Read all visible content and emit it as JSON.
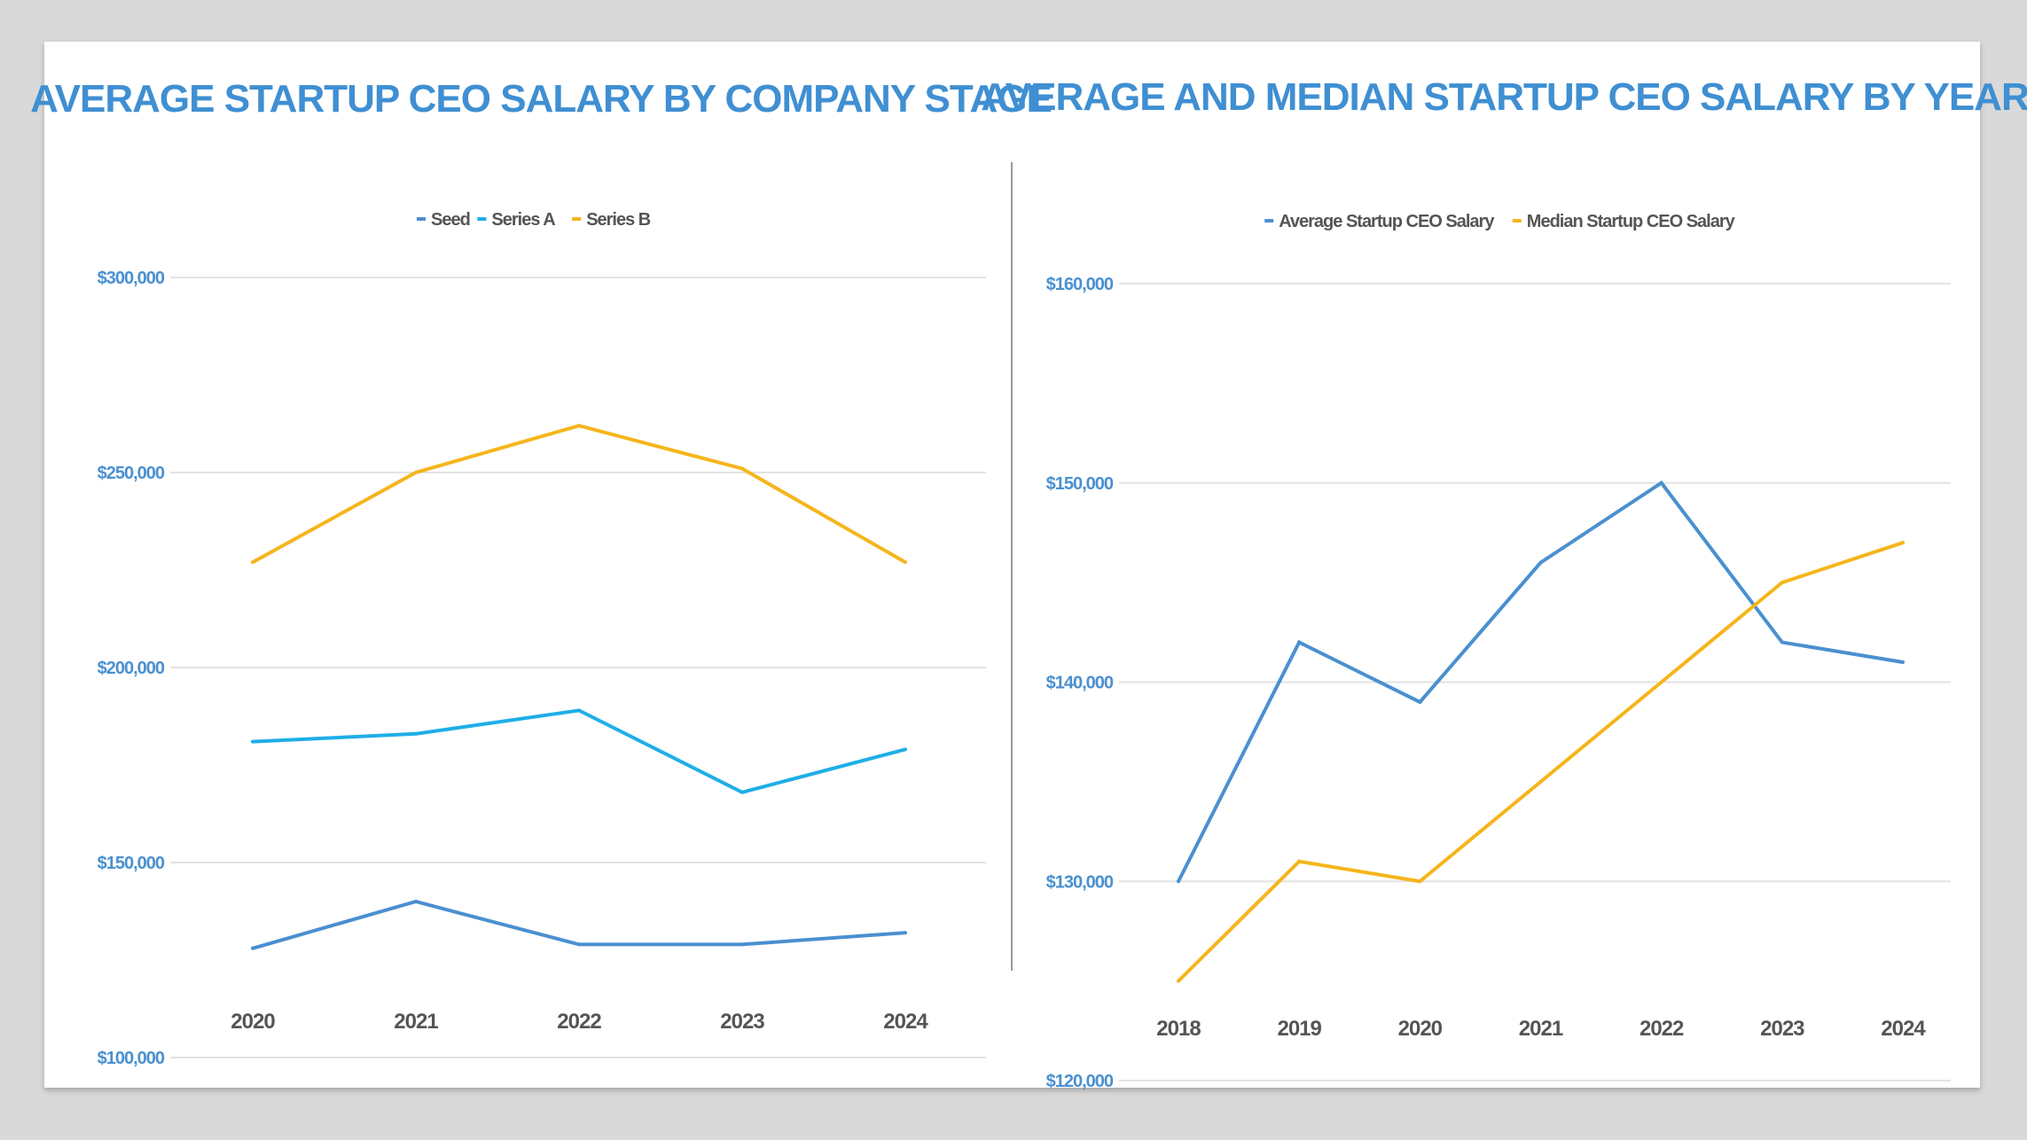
{
  "chart_data": [
    {
      "type": "line",
      "title": "AVERAGE STARTUP CEO SALARY BY COMPANY STAGE",
      "categories": [
        "2020",
        "2021",
        "2022",
        "2023",
        "2024"
      ],
      "ylim": [
        100000,
        300000
      ],
      "yticks": [
        "$100,000",
        "$150,000",
        "$200,000",
        "$250,000",
        "$300,000"
      ],
      "ytick_values": [
        100000,
        150000,
        200000,
        250000,
        300000
      ],
      "grid": true,
      "legend": "top-center",
      "series": [
        {
          "name": "Seed",
          "color": "#4a8fd0",
          "values": [
            128000,
            140000,
            129000,
            129000,
            132000
          ]
        },
        {
          "name": "Series A",
          "color": "#1eaee6",
          "values": [
            181000,
            183000,
            189000,
            168000,
            179000
          ]
        },
        {
          "name": "Series B",
          "color": "#f5b51b",
          "values": [
            227000,
            250000,
            262000,
            251000,
            227000
          ]
        }
      ]
    },
    {
      "type": "line",
      "title": "AVERAGE AND MEDIAN STARTUP CEO SALARY BY YEAR",
      "categories": [
        "2018",
        "2019",
        "2020",
        "2021",
        "2022",
        "2023",
        "2024"
      ],
      "ylim": [
        120000,
        160000
      ],
      "yticks": [
        "$120,000",
        "$130,000",
        "$140,000",
        "$150,000",
        "$160,000"
      ],
      "ytick_values": [
        120000,
        130000,
        140000,
        150000,
        160000
      ],
      "grid": true,
      "legend": "top-center",
      "series": [
        {
          "name": "Average Startup CEO Salary",
          "color": "#4a90d0",
          "values": [
            130000,
            142000,
            139000,
            146000,
            150000,
            142000,
            141000
          ]
        },
        {
          "name": "Median Startup CEO Salary",
          "color": "#f5b51b",
          "values": [
            125000,
            131000,
            130000,
            135000,
            140000,
            145000,
            147000
          ]
        }
      ]
    }
  ]
}
